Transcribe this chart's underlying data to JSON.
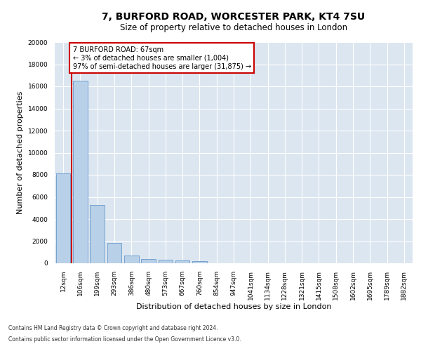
{
  "title": "7, BURFORD ROAD, WORCESTER PARK, KT4 7SU",
  "subtitle": "Size of property relative to detached houses in London",
  "xlabel": "Distribution of detached houses by size in London",
  "ylabel": "Number of detached properties",
  "categories": [
    "12sqm",
    "106sqm",
    "199sqm",
    "293sqm",
    "386sqm",
    "480sqm",
    "573sqm",
    "667sqm",
    "760sqm",
    "854sqm",
    "947sqm",
    "1041sqm",
    "1134sqm",
    "1228sqm",
    "1321sqm",
    "1415sqm",
    "1508sqm",
    "1602sqm",
    "1695sqm",
    "1789sqm",
    "1882sqm"
  ],
  "values": [
    8100,
    16500,
    5300,
    1850,
    680,
    370,
    290,
    230,
    190,
    0,
    0,
    0,
    0,
    0,
    0,
    0,
    0,
    0,
    0,
    0,
    0
  ],
  "bar_color": "#b8d0e8",
  "bar_edge_color": "#6699cc",
  "vline_color": "#cc0000",
  "vline_x": 0.5,
  "annotation_line1": "7 BURFORD ROAD: 67sqm",
  "annotation_line2": "← 3% of detached houses are smaller (1,004)",
  "annotation_line3": "97% of semi-detached houses are larger (31,875) →",
  "annotation_box_facecolor": "#ffffff",
  "annotation_box_edgecolor": "#cc0000",
  "ylim": [
    0,
    20000
  ],
  "yticks": [
    0,
    2000,
    4000,
    6000,
    8000,
    10000,
    12000,
    14000,
    16000,
    18000,
    20000
  ],
  "background_color": "#dce6f0",
  "grid_color": "#ffffff",
  "footer_line1": "Contains HM Land Registry data © Crown copyright and database right 2024.",
  "footer_line2": "Contains public sector information licensed under the Open Government Licence v3.0.",
  "title_fontsize": 10,
  "subtitle_fontsize": 8.5,
  "tick_fontsize": 6.5,
  "ylabel_fontsize": 8,
  "xlabel_fontsize": 8,
  "annotation_fontsize": 7,
  "footer_fontsize": 5.5
}
